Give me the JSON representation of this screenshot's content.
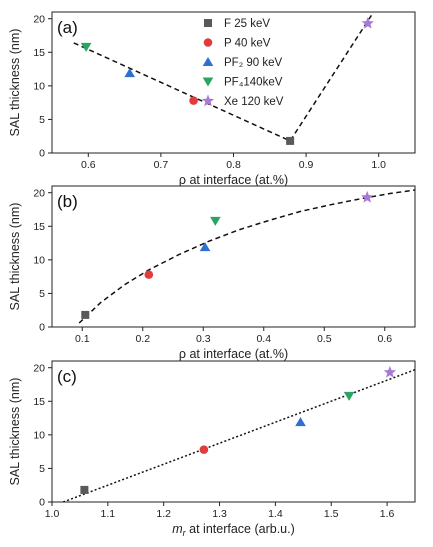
{
  "chart_data": [
    {
      "type": "scatter",
      "panel_label": "(a)",
      "xlabel": "ρ at interface (at.%)",
      "ylabel": "SAL thickness (nm)",
      "xlim": [
        0.55,
        1.05
      ],
      "ylim": [
        0,
        21
      ],
      "xticks": [
        "0.6",
        "0.7",
        "0.8",
        "0.9",
        "1.0"
      ],
      "yticks": [
        "0",
        "5",
        "10",
        "15",
        "20"
      ],
      "legend_position": "top-center",
      "series": [
        {
          "name": "F 25 keV",
          "marker": "square",
          "color": "#5a5a5a",
          "x": [
            0.878
          ],
          "y": [
            1.8
          ]
        },
        {
          "name": "P 40 keV",
          "marker": "circle",
          "color": "#e23b3b",
          "x": [
            0.745
          ],
          "y": [
            7.8
          ]
        },
        {
          "name": "PF₂ 90 keV",
          "marker": "triangle-up",
          "color": "#2f6fcf",
          "x": [
            0.657
          ],
          "y": [
            11.9
          ]
        },
        {
          "name": "PF₄140keV",
          "marker": "triangle-down",
          "color": "#2aa561",
          "x": [
            0.597
          ],
          "y": [
            15.8
          ]
        },
        {
          "name": "Xe 120 keV",
          "marker": "star",
          "color": "#a87ad6",
          "x": [
            0.985
          ],
          "y": [
            19.3
          ]
        }
      ],
      "fit_line": {
        "style": "dashed",
        "x": [
          0.58,
          0.878,
          0.99
        ],
        "y": [
          16.4,
          1.8,
          20.5
        ]
      }
    },
    {
      "type": "scatter",
      "panel_label": "(b)",
      "xlabel": "ρ at interface (at.%)",
      "ylabel": "SAL thickness (nm)",
      "xlim": [
        0.05,
        0.65
      ],
      "ylim": [
        0,
        21
      ],
      "xticks": [
        "0.1",
        "0.2",
        "0.3",
        "0.4",
        "0.5",
        "0.6"
      ],
      "yticks": [
        "0",
        "5",
        "10",
        "15",
        "20"
      ],
      "series": [
        {
          "name": "F 25 keV",
          "marker": "square",
          "color": "#5a5a5a",
          "x": [
            0.105
          ],
          "y": [
            1.8
          ]
        },
        {
          "name": "P 40 keV",
          "marker": "circle",
          "color": "#e23b3b",
          "x": [
            0.21
          ],
          "y": [
            7.8
          ]
        },
        {
          "name": "PF₂ 90 keV",
          "marker": "triangle-up",
          "color": "#2f6fcf",
          "x": [
            0.303
          ],
          "y": [
            11.9
          ]
        },
        {
          "name": "PF₄140keV",
          "marker": "triangle-down",
          "color": "#2aa561",
          "x": [
            0.32
          ],
          "y": [
            15.8
          ]
        },
        {
          "name": "Xe 120 keV",
          "marker": "star",
          "color": "#a87ad6",
          "x": [
            0.571
          ],
          "y": [
            19.3
          ]
        }
      ],
      "fit_curve": {
        "style": "dashed",
        "x": [
          0.095,
          0.13,
          0.17,
          0.21,
          0.26,
          0.31,
          0.36,
          0.41,
          0.46,
          0.51,
          0.56,
          0.61,
          0.65
        ],
        "y": [
          0.6,
          3.6,
          6.3,
          8.5,
          10.8,
          12.8,
          14.5,
          15.9,
          17.2,
          18.2,
          19.1,
          19.9,
          20.4
        ]
      }
    },
    {
      "type": "scatter",
      "panel_label": "(c)",
      "xlabel_sym": "m",
      "xlabel_sub": "r",
      "xlabel_rest": " at interface (arb.u.)",
      "ylabel": "SAL thickness (nm)",
      "xlim": [
        1.0,
        1.65
      ],
      "ylim": [
        0,
        21
      ],
      "xticks": [
        "1.0",
        "1.1",
        "1.2",
        "1.3",
        "1.4",
        "1.5",
        "1.6"
      ],
      "yticks": [
        "0",
        "5",
        "10",
        "15",
        "20"
      ],
      "series": [
        {
          "name": "F 25 keV",
          "marker": "square",
          "color": "#5a5a5a",
          "x": [
            1.058
          ],
          "y": [
            1.8
          ]
        },
        {
          "name": "P 40 keV",
          "marker": "circle",
          "color": "#e23b3b",
          "x": [
            1.272
          ],
          "y": [
            7.8
          ]
        },
        {
          "name": "PF₂ 90 keV",
          "marker": "triangle-up",
          "color": "#2f6fcf",
          "x": [
            1.445
          ],
          "y": [
            11.9
          ]
        },
        {
          "name": "PF₄140keV",
          "marker": "triangle-down",
          "color": "#2aa561",
          "x": [
            1.532
          ],
          "y": [
            15.8
          ]
        },
        {
          "name": "Xe 120 keV",
          "marker": "star",
          "color": "#a87ad6",
          "x": [
            1.605
          ],
          "y": [
            19.3
          ]
        }
      ],
      "fit_line": {
        "style": "dotted",
        "x": [
          1.02,
          1.65
        ],
        "y": [
          0,
          19.7
        ]
      }
    }
  ]
}
